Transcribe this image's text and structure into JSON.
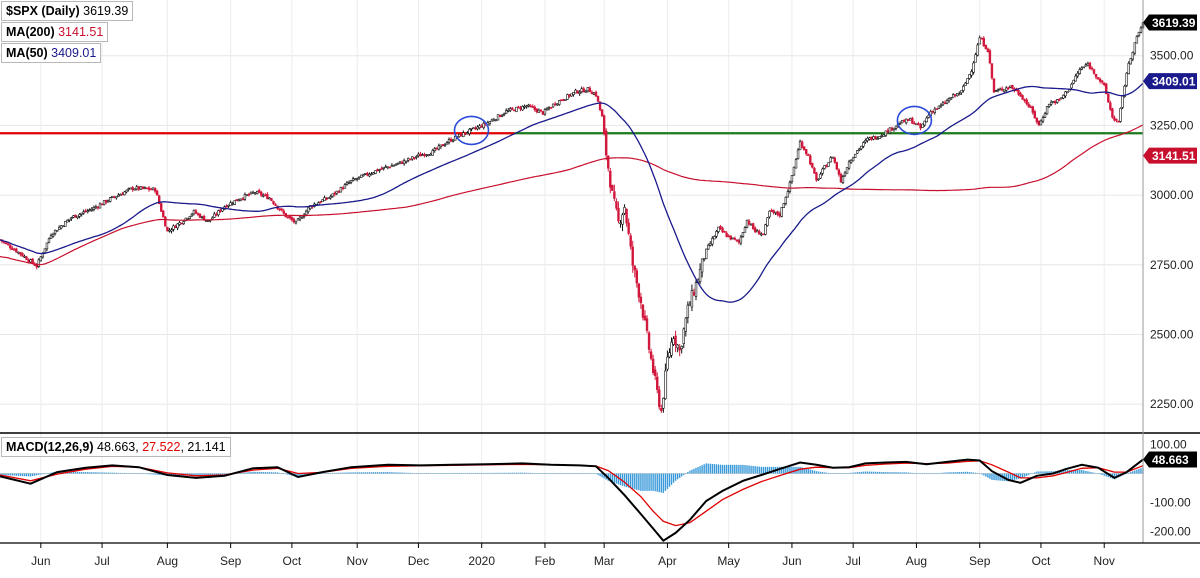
{
  "chart_data": [
    {
      "type": "candlestick",
      "title": "$SPX (Daily)",
      "last_value": "3619.39",
      "ylim": [
        2150,
        3700
      ],
      "y_ticks": [
        "3500.00",
        "3250.00",
        "3000.00",
        "2750.00",
        "2500.00",
        "2250.00"
      ],
      "y_tick_values": [
        3500,
        3250,
        3000,
        2750,
        2500,
        2250
      ],
      "x_ticks": [
        "Jun",
        "Jul",
        "Aug",
        "Sep",
        "Oct",
        "Nov",
        "Dec",
        "2020",
        "Feb",
        "Mar",
        "Apr",
        "May",
        "Jun",
        "Jul",
        "Aug",
        "Sep",
        "Oct",
        "Nov"
      ],
      "x_tick_days": [
        20,
        50,
        82,
        113,
        143,
        175,
        205,
        236,
        267,
        296,
        327,
        357,
        388,
        418,
        449,
        480,
        510,
        541
      ],
      "indicators": [
        {
          "name": "MA(200)",
          "label": "MA(200)",
          "value": "3141.51",
          "color": "#c8102e"
        },
        {
          "name": "MA(50)",
          "label": "MA(50)",
          "value": "3409.01",
          "color": "#1a1a8c"
        }
      ],
      "horizontal_lines": [
        {
          "value": 3222,
          "color": "#e00000",
          "from_day": 0,
          "to_day": 252
        },
        {
          "value": 3222,
          "color": "#1a7a1a",
          "from_day": 252,
          "to_day": 560
        }
      ],
      "circles": [
        {
          "day": 231,
          "value": 3232
        },
        {
          "day": 448,
          "value": 3268
        }
      ],
      "close_series": [
        [
          0,
          2840
        ],
        [
          10,
          2790
        ],
        [
          18,
          2745
        ],
        [
          25,
          2860
        ],
        [
          35,
          2920
        ],
        [
          45,
          2950
        ],
        [
          55,
          2990
        ],
        [
          65,
          3025
        ],
        [
          76,
          3020
        ],
        [
          82,
          2870
        ],
        [
          88,
          2900
        ],
        [
          95,
          2940
        ],
        [
          102,
          2905
        ],
        [
          110,
          2960
        ],
        [
          118,
          2990
        ],
        [
          125,
          3010
        ],
        [
          132,
          2990
        ],
        [
          140,
          2925
        ],
        [
          145,
          2900
        ],
        [
          152,
          2960
        ],
        [
          162,
          2995
        ],
        [
          172,
          3050
        ],
        [
          185,
          3090
        ],
        [
          198,
          3120
        ],
        [
          205,
          3142
        ],
        [
          212,
          3155
        ],
        [
          220,
          3195
        ],
        [
          230,
          3230
        ],
        [
          238,
          3255
        ],
        [
          248,
          3300
        ],
        [
          258,
          3320
        ],
        [
          266,
          3295
        ],
        [
          272,
          3330
        ],
        [
          282,
          3370
        ],
        [
          288,
          3380
        ],
        [
          292,
          3360
        ],
        [
          295,
          3280
        ],
        [
          297,
          3150
        ],
        [
          300,
          3000
        ],
        [
          303,
          2900
        ],
        [
          306,
          2960
        ],
        [
          310,
          2750
        ],
        [
          314,
          2620
        ],
        [
          318,
          2450
        ],
        [
          322,
          2290
        ],
        [
          324,
          2225
        ],
        [
          327,
          2410
        ],
        [
          330,
          2500
        ],
        [
          333,
          2440
        ],
        [
          337,
          2590
        ],
        [
          341,
          2680
        ],
        [
          346,
          2800
        ],
        [
          352,
          2880
        ],
        [
          357,
          2850
        ],
        [
          362,
          2830
        ],
        [
          366,
          2910
        ],
        [
          370,
          2870
        ],
        [
          374,
          2860
        ],
        [
          377,
          2940
        ],
        [
          382,
          2930
        ],
        [
          387,
          3040
        ],
        [
          392,
          3190
        ],
        [
          396,
          3140
        ],
        [
          400,
          3050
        ],
        [
          404,
          3100
        ],
        [
          408,
          3140
        ],
        [
          412,
          3050
        ],
        [
          416,
          3120
        ],
        [
          420,
          3160
        ],
        [
          425,
          3200
        ],
        [
          430,
          3210
        ],
        [
          436,
          3235
        ],
        [
          441,
          3260
        ],
        [
          446,
          3270
        ],
        [
          451,
          3240
        ],
        [
          456,
          3300
        ],
        [
          461,
          3320
        ],
        [
          466,
          3350
        ],
        [
          471,
          3370
        ],
        [
          476,
          3450
        ],
        [
          480,
          3565
        ],
        [
          484,
          3520
        ],
        [
          487,
          3370
        ],
        [
          491,
          3380
        ],
        [
          495,
          3390
        ],
        [
          500,
          3360
        ],
        [
          505,
          3310
        ],
        [
          509,
          3250
        ],
        [
          514,
          3330
        ],
        [
          519,
          3340
        ],
        [
          524,
          3385
        ],
        [
          529,
          3450
        ],
        [
          533,
          3470
        ],
        [
          537,
          3430
        ],
        [
          541,
          3390
        ],
        [
          545,
          3280
        ],
        [
          548,
          3260
        ],
        [
          552,
          3440
        ],
        [
          556,
          3545
        ],
        [
          560,
          3619
        ]
      ]
    },
    {
      "type": "macd",
      "label": "MACD(12,26,9)",
      "macd_value": "48.663",
      "signal_value": "27.522",
      "histogram_value": "21.141",
      "ylim": [
        -240,
        140
      ],
      "y_ticks": [
        "100.00",
        "-100.00",
        "-200.00"
      ],
      "y_tick_values": [
        100,
        -100,
        -200
      ],
      "macd_series": [
        [
          0,
          -10
        ],
        [
          15,
          -35
        ],
        [
          28,
          5
        ],
        [
          42,
          20
        ],
        [
          55,
          28
        ],
        [
          68,
          22
        ],
        [
          82,
          -5
        ],
        [
          96,
          -15
        ],
        [
          110,
          -8
        ],
        [
          124,
          18
        ],
        [
          136,
          22
        ],
        [
          146,
          -12
        ],
        [
          158,
          5
        ],
        [
          172,
          22
        ],
        [
          190,
          30
        ],
        [
          206,
          28
        ],
        [
          222,
          30
        ],
        [
          238,
          32
        ],
        [
          256,
          35
        ],
        [
          270,
          30
        ],
        [
          284,
          28
        ],
        [
          292,
          25
        ],
        [
          298,
          -15
        ],
        [
          306,
          -75
        ],
        [
          314,
          -140
        ],
        [
          320,
          -190
        ],
        [
          325,
          -232
        ],
        [
          331,
          -205
        ],
        [
          338,
          -160
        ],
        [
          346,
          -95
        ],
        [
          354,
          -60
        ],
        [
          364,
          -25
        ],
        [
          373,
          -5
        ],
        [
          383,
          18
        ],
        [
          392,
          38
        ],
        [
          400,
          30
        ],
        [
          408,
          20
        ],
        [
          416,
          22
        ],
        [
          424,
          35
        ],
        [
          434,
          38
        ],
        [
          444,
          40
        ],
        [
          454,
          32
        ],
        [
          464,
          40
        ],
        [
          474,
          48
        ],
        [
          480,
          45
        ],
        [
          486,
          8
        ],
        [
          494,
          -22
        ],
        [
          500,
          -32
        ],
        [
          508,
          -8
        ],
        [
          516,
          0
        ],
        [
          522,
          15
        ],
        [
          530,
          30
        ],
        [
          538,
          20
        ],
        [
          546,
          -15
        ],
        [
          552,
          5
        ],
        [
          560,
          48
        ]
      ],
      "signal_series": [
        [
          0,
          -5
        ],
        [
          15,
          -25
        ],
        [
          28,
          -2
        ],
        [
          42,
          15
        ],
        [
          55,
          25
        ],
        [
          68,
          22
        ],
        [
          82,
          2
        ],
        [
          96,
          -8
        ],
        [
          110,
          -5
        ],
        [
          124,
          12
        ],
        [
          136,
          18
        ],
        [
          146,
          0
        ],
        [
          158,
          4
        ],
        [
          172,
          18
        ],
        [
          190,
          25
        ],
        [
          206,
          27
        ],
        [
          222,
          28
        ],
        [
          238,
          30
        ],
        [
          256,
          32
        ],
        [
          270,
          30
        ],
        [
          284,
          28
        ],
        [
          292,
          26
        ],
        [
          298,
          10
        ],
        [
          306,
          -30
        ],
        [
          314,
          -80
        ],
        [
          320,
          -130
        ],
        [
          325,
          -165
        ],
        [
          331,
          -180
        ],
        [
          338,
          -170
        ],
        [
          346,
          -130
        ],
        [
          354,
          -90
        ],
        [
          364,
          -55
        ],
        [
          373,
          -28
        ],
        [
          383,
          -5
        ],
        [
          392,
          15
        ],
        [
          400,
          22
        ],
        [
          408,
          20
        ],
        [
          416,
          20
        ],
        [
          424,
          28
        ],
        [
          434,
          33
        ],
        [
          444,
          36
        ],
        [
          454,
          34
        ],
        [
          464,
          36
        ],
        [
          474,
          42
        ],
        [
          480,
          44
        ],
        [
          486,
          30
        ],
        [
          494,
          5
        ],
        [
          500,
          -15
        ],
        [
          508,
          -15
        ],
        [
          516,
          -8
        ],
        [
          522,
          3
        ],
        [
          530,
          18
        ],
        [
          538,
          20
        ],
        [
          546,
          5
        ],
        [
          552,
          5
        ],
        [
          560,
          27
        ]
      ]
    }
  ]
}
